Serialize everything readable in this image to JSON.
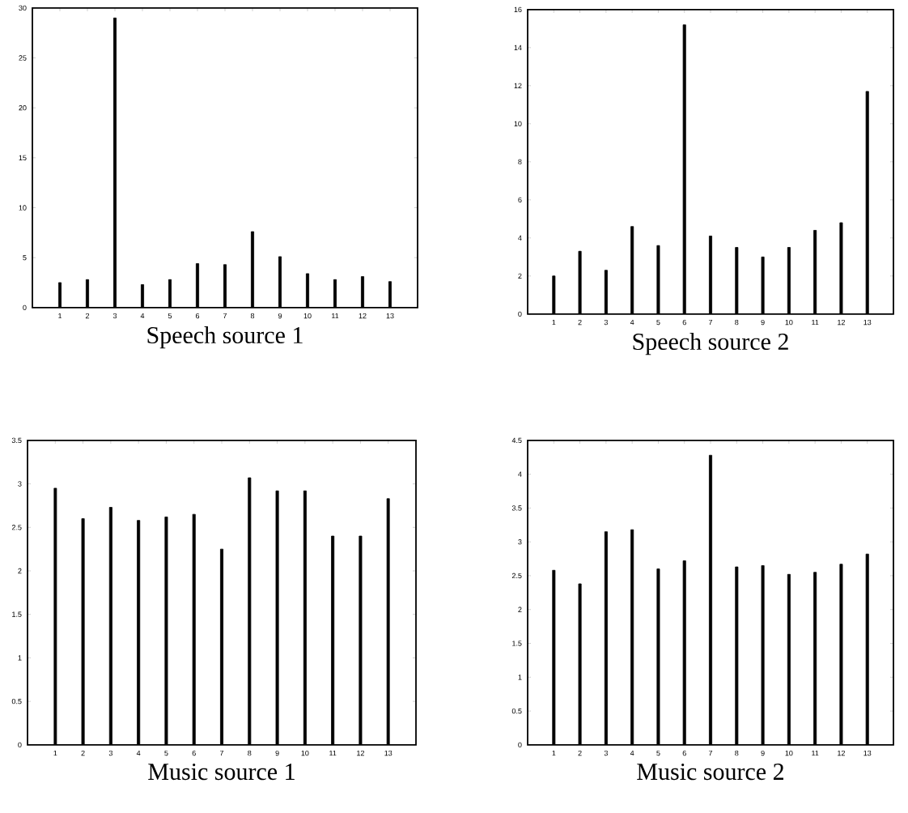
{
  "chart_data": [
    {
      "type": "bar",
      "xlabel": "Speech source 1",
      "categories": [
        "1",
        "2",
        "3",
        "4",
        "5",
        "6",
        "7",
        "8",
        "9",
        "10",
        "11",
        "12",
        "13"
      ],
      "color": "#000000",
      "ylim": [
        0,
        30
      ],
      "yticks": [
        0,
        5,
        10,
        15,
        20,
        25,
        30
      ],
      "values": [
        2.5,
        2.8,
        29,
        2.3,
        2.8,
        4.4,
        4.3,
        7.6,
        5.1,
        3.4,
        2.8,
        3.1,
        2.6
      ]
    },
    {
      "type": "bar",
      "xlabel": "Speech source 2",
      "categories": [
        "1",
        "2",
        "3",
        "4",
        "5",
        "6",
        "7",
        "8",
        "9",
        "10",
        "11",
        "12",
        "13"
      ],
      "color": "#000000",
      "ylim": [
        0,
        16
      ],
      "yticks": [
        0,
        2,
        4,
        6,
        8,
        10,
        12,
        14,
        16
      ],
      "values": [
        2.0,
        3.3,
        2.3,
        4.6,
        3.6,
        15.2,
        4.1,
        3.5,
        3.0,
        3.5,
        4.4,
        4.8,
        11.7
      ]
    },
    {
      "type": "bar",
      "xlabel": "Music source 1",
      "categories": [
        "1",
        "2",
        "3",
        "4",
        "5",
        "6",
        "7",
        "8",
        "9",
        "10",
        "11",
        "12",
        "13"
      ],
      "color": "#000000",
      "ylim": [
        0,
        3.5
      ],
      "yticks": [
        0,
        0.5,
        1,
        1.5,
        2,
        2.5,
        3,
        3.5
      ],
      "values": [
        2.95,
        2.6,
        2.73,
        2.58,
        2.62,
        2.65,
        2.25,
        3.07,
        2.92,
        2.92,
        2.4,
        2.4,
        2.83
      ]
    },
    {
      "type": "bar",
      "xlabel": "Music source 2",
      "categories": [
        "1",
        "2",
        "3",
        "4",
        "5",
        "6",
        "7",
        "8",
        "9",
        "10",
        "11",
        "12",
        "13"
      ],
      "color": "#000000",
      "ylim": [
        0,
        4.5
      ],
      "yticks": [
        0,
        0.5,
        1,
        1.5,
        2,
        2.5,
        3,
        3.5,
        4,
        4.5
      ],
      "values": [
        2.58,
        2.38,
        3.15,
        3.18,
        2.6,
        2.72,
        4.28,
        2.63,
        2.65,
        2.52,
        2.55,
        2.67,
        2.82
      ]
    }
  ]
}
